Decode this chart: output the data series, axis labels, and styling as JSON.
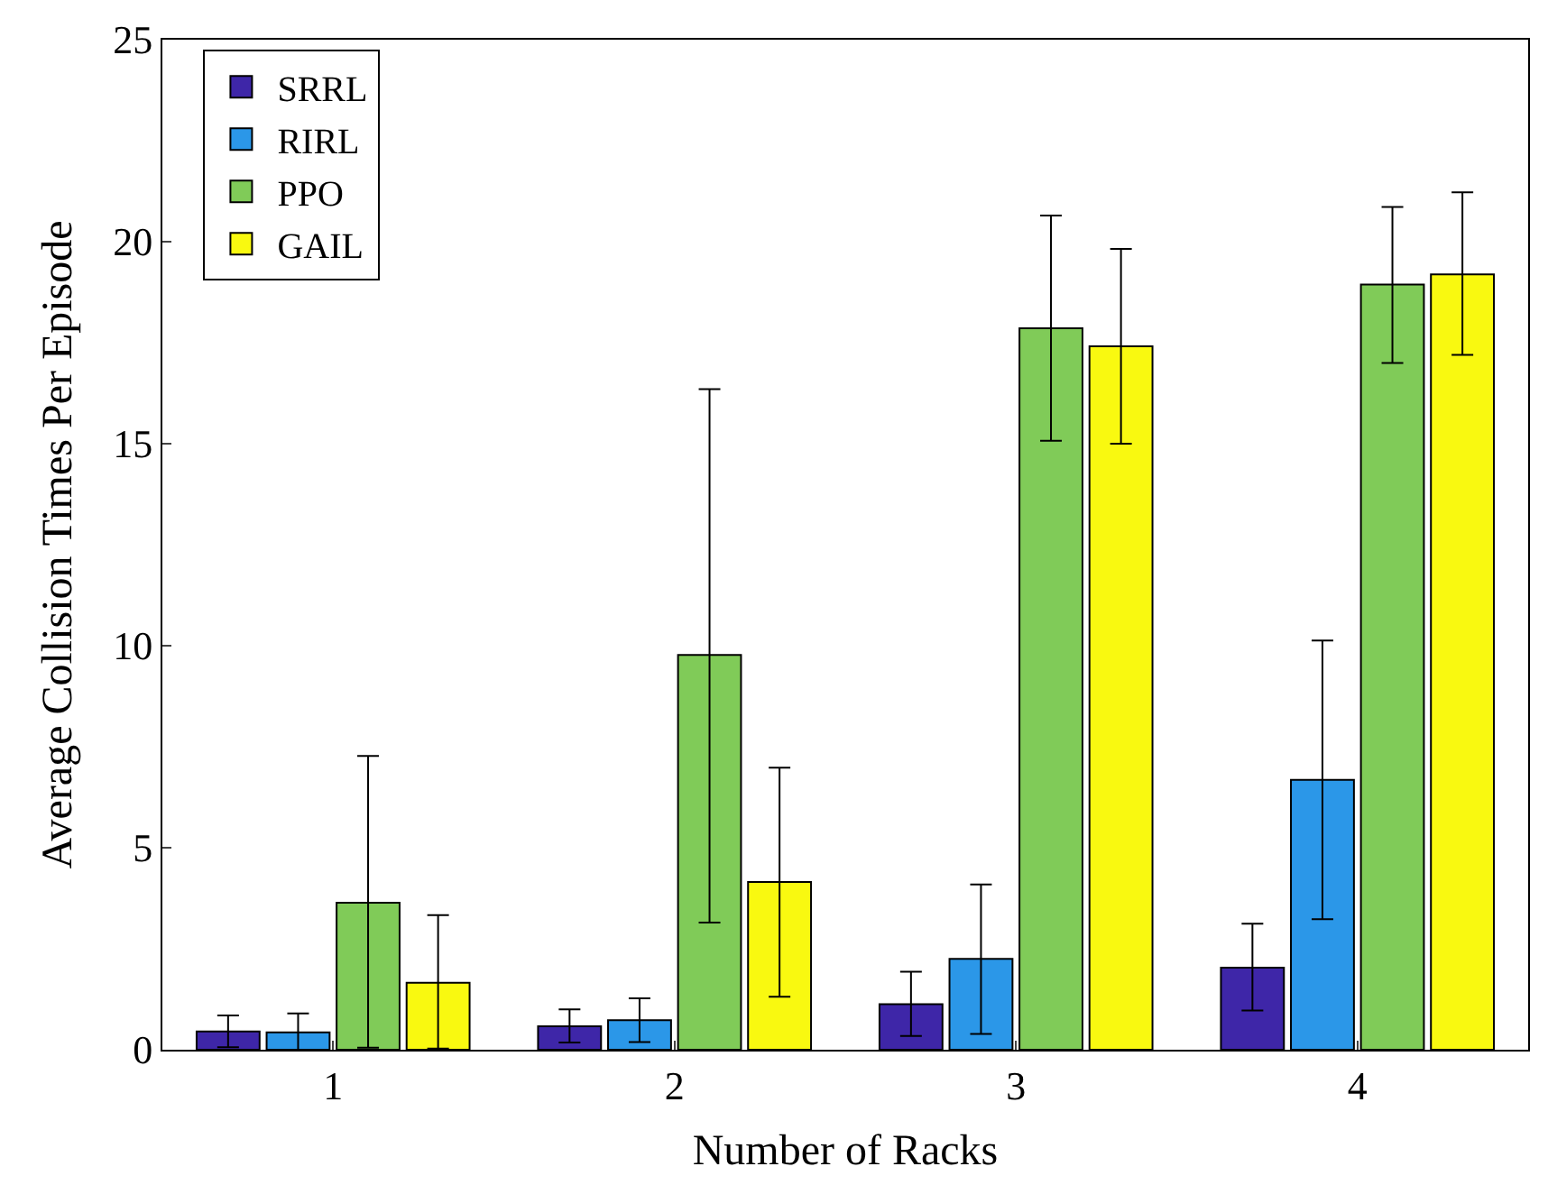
{
  "chart_data": {
    "type": "bar",
    "xlabel": "Number of Racks",
    "ylabel": "Average Collision Times Per Episode",
    "categories": [
      "1",
      "2",
      "3",
      "4"
    ],
    "series": [
      {
        "name": "SRRL",
        "color": "#3e26a8",
        "values": [
          0.45,
          0.58,
          1.13,
          2.03
        ],
        "errors": [
          [
            0.06,
            0.85
          ],
          [
            0.18,
            1.0
          ],
          [
            0.34,
            1.93
          ],
          [
            0.97,
            3.12
          ]
        ]
      },
      {
        "name": "RIRL",
        "color": "#2b97e8",
        "values": [
          0.43,
          0.73,
          2.25,
          6.68
        ],
        "errors": [
          [
            0.0,
            0.9
          ],
          [
            0.19,
            1.27
          ],
          [
            0.39,
            4.09
          ],
          [
            3.23,
            10.13
          ]
        ]
      },
      {
        "name": "PPO",
        "color": "#80cb58",
        "values": [
          3.64,
          9.77,
          17.86,
          18.94
        ],
        "errors": [
          [
            0.05,
            7.27
          ],
          [
            3.15,
            16.35
          ],
          [
            15.07,
            20.65
          ],
          [
            17.0,
            20.86
          ]
        ]
      },
      {
        "name": "GAIL",
        "color": "#f9f910",
        "values": [
          1.66,
          4.15,
          17.41,
          19.19
        ],
        "errors": [
          [
            0.03,
            3.33
          ],
          [
            1.31,
            6.98
          ],
          [
            15.0,
            19.82
          ],
          [
            17.2,
            21.22
          ]
        ]
      }
    ],
    "ylim": [
      0,
      25
    ],
    "yticks": [
      0,
      5,
      10,
      15,
      20,
      25
    ],
    "legend": "top left"
  }
}
